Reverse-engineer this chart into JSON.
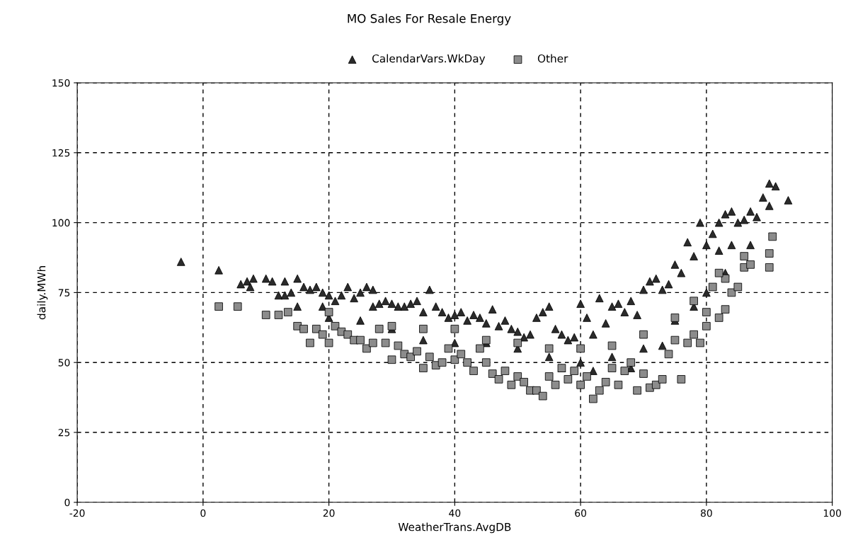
{
  "chart_data": {
    "type": "scatter",
    "title": "MO Sales For Resale Energy",
    "xlabel": "WeatherTrans.AvgDB",
    "ylabel": "daily.MWh",
    "xlim": [
      -20,
      100
    ],
    "xticks": [
      -20,
      0,
      20,
      40,
      60,
      80,
      100
    ],
    "ylim": [
      0,
      150
    ],
    "yticks": [
      0,
      25,
      50,
      75,
      100,
      125,
      150
    ],
    "grid": true,
    "legend": "top",
    "series": [
      {
        "name": "CalendarVars.WkDay",
        "color": "#2b2b2b",
        "marker": "triangle",
        "x": [
          -3.5,
          2.5,
          6,
          7,
          7.5,
          8,
          10,
          11,
          12,
          13,
          13,
          14,
          15,
          15,
          16,
          17,
          18,
          19,
          19,
          20,
          21,
          22,
          23,
          24,
          25,
          26,
          27,
          27,
          28,
          29,
          30,
          31,
          32,
          33,
          34,
          35,
          36,
          37,
          38,
          39,
          40,
          41,
          42,
          43,
          44,
          45,
          46,
          47,
          48,
          49,
          50,
          51,
          52,
          53,
          54,
          55,
          56,
          57,
          58,
          59,
          60,
          61,
          62,
          63,
          64,
          65,
          66,
          67,
          68,
          69,
          70,
          71,
          72,
          73,
          74,
          75,
          76,
          77,
          78,
          79,
          80,
          81,
          82,
          82,
          83,
          84,
          84,
          85,
          86,
          87,
          87,
          88,
          89,
          90,
          90,
          91,
          93,
          35,
          40,
          45,
          50,
          55,
          60,
          65,
          70,
          75,
          78,
          80,
          83,
          25,
          30,
          20,
          57,
          62,
          68,
          73
        ],
        "values": [
          86,
          83,
          78,
          79,
          77,
          80,
          80,
          79,
          74,
          79,
          74,
          75,
          80,
          70,
          77,
          76,
          77,
          75,
          70,
          74,
          72,
          74,
          77,
          73,
          75,
          77,
          76,
          70,
          71,
          72,
          71,
          70,
          70,
          71,
          72,
          68,
          76,
          70,
          68,
          66,
          67,
          68,
          65,
          67,
          66,
          64,
          69,
          63,
          65,
          62,
          61,
          59,
          60,
          66,
          68,
          70,
          62,
          60,
          58,
          59,
          71,
          66,
          60,
          73,
          64,
          70,
          71,
          68,
          72,
          67,
          76,
          79,
          80,
          76,
          78,
          85,
          82,
          93,
          88,
          100,
          92,
          96,
          100,
          90,
          103,
          104,
          92,
          100,
          101,
          104,
          92,
          102,
          109,
          106,
          114,
          113,
          108,
          58,
          57,
          57,
          55,
          52,
          50,
          52,
          55,
          65,
          70,
          75,
          82,
          65,
          62,
          66,
          48,
          47,
          48,
          56
        ]
      },
      {
        "name": "Other",
        "color": "#8c8c8c",
        "marker": "square",
        "x": [
          2.5,
          5.5,
          10,
          12,
          13.5,
          15,
          16,
          17,
          18,
          19,
          20,
          21,
          22,
          23,
          24,
          25,
          26,
          27,
          28,
          29,
          30,
          31,
          32,
          33,
          34,
          35,
          36,
          37,
          38,
          39,
          40,
          41,
          42,
          43,
          44,
          45,
          46,
          47,
          48,
          49,
          50,
          51,
          52,
          53,
          54,
          55,
          56,
          57,
          58,
          59,
          60,
          61,
          62,
          63,
          64,
          65,
          66,
          67,
          68,
          69,
          70,
          71,
          72,
          73,
          74,
          75,
          76,
          77,
          78,
          79,
          80,
          80,
          81,
          82,
          83,
          83,
          84,
          85,
          86,
          86,
          87,
          90,
          90,
          90.5,
          20,
          30,
          35,
          40,
          45,
          50,
          55,
          60,
          65,
          70,
          75,
          78,
          82
        ],
        "values": [
          70,
          70,
          67,
          67,
          68,
          63,
          62,
          57,
          62,
          60,
          57,
          63,
          61,
          60,
          58,
          58,
          55,
          57,
          62,
          57,
          51,
          56,
          53,
          52,
          54,
          48,
          52,
          49,
          50,
          55,
          51,
          53,
          50,
          47,
          55,
          50,
          46,
          44,
          47,
          42,
          45,
          43,
          40,
          40,
          38,
          45,
          42,
          48,
          44,
          47,
          42,
          45,
          37,
          40,
          43,
          48,
          42,
          47,
          50,
          40,
          46,
          41,
          42,
          44,
          53,
          58,
          44,
          57,
          60,
          57,
          63,
          68,
          77,
          66,
          69,
          80,
          75,
          77,
          84,
          88,
          85,
          89,
          84,
          95,
          68,
          63,
          62,
          62,
          58,
          57,
          55,
          55,
          56,
          60,
          66,
          72,
          82
        ]
      }
    ]
  }
}
